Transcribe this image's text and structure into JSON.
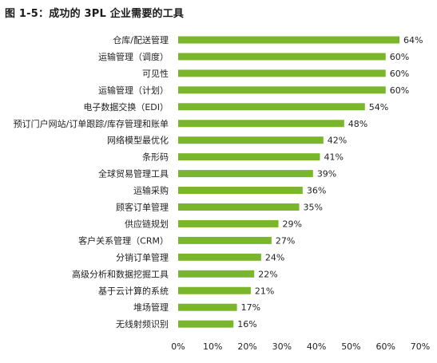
{
  "figure": {
    "title": "图 1-5：成功的 3PL 企业需要的工具"
  },
  "chart_data": {
    "type": "bar",
    "orientation": "horizontal",
    "title": "图 1-5：成功的 3PL 企业需要的工具",
    "xlabel": "",
    "ylabel": "",
    "xlim": [
      0,
      70
    ],
    "x_ticks": [
      "0%",
      "10%",
      "20%",
      "30%",
      "40%",
      "50%",
      "60%",
      "70%"
    ],
    "grid": false,
    "legend": "none",
    "bar_color": "#7ab62b",
    "categories": [
      "仓库/配送管理",
      "运输管理（调度）",
      "可见性",
      "运输管理（计划）",
      "电子数据交换（EDI）",
      "预订门户网站/订单跟踪/库存管理和账单",
      "网络模型最优化",
      "条形码",
      "全球贸易管理工具",
      "运输采购",
      "顾客订单管理",
      "供应链规划",
      "客户关系管理（CRM）",
      "分销订单管理",
      "高级分析和数据挖掘工具",
      "基于云计算的系统",
      "堆场管理",
      "无线射频识别"
    ],
    "values": [
      64,
      60,
      60,
      60,
      54,
      48,
      42,
      41,
      39,
      36,
      35,
      29,
      27,
      24,
      22,
      21,
      17,
      16
    ],
    "value_labels": [
      "64%",
      "60%",
      "60%",
      "60%",
      "54%",
      "48%",
      "42%",
      "41%",
      "39%",
      "36%",
      "35%",
      "29%",
      "27%",
      "24%",
      "22%",
      "21%",
      "17%",
      "16%"
    ]
  }
}
